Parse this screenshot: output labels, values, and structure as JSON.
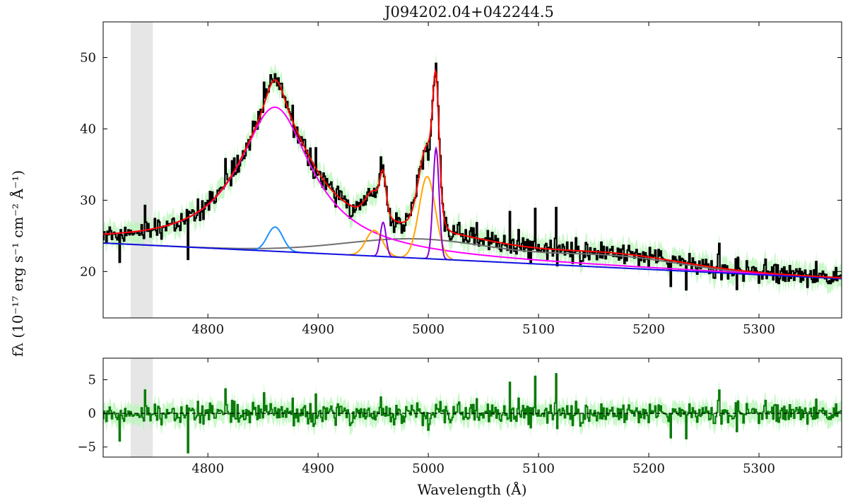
{
  "chart_data": [
    {
      "type": "line",
      "title": "J094202.04+042244.5",
      "xlabel": "",
      "ylabel": "fλ (10⁻¹⁷ erg s⁻¹ cm⁻² Å⁻¹)",
      "xlim": [
        4705,
        5375
      ],
      "ylim": [
        13.5,
        55
      ],
      "xticks": [
        4800,
        4900,
        5000,
        5100,
        5200,
        5300
      ],
      "yticks": [
        20,
        30,
        40,
        50
      ],
      "masked_region": [
        4730,
        4750
      ],
      "model": {
        "continuum": {
          "color": "#1010e0",
          "values_at": {
            "x": [
              4705,
              5375
            ],
            "y": [
              24.0,
              19.0
            ]
          }
        },
        "hbeta_broad": {
          "color": "#ff00ff",
          "center": 4861,
          "peak_above_continuum": 20.2
        },
        "hbeta_narrow": {
          "color": "#1e90ff",
          "center": 4861,
          "peak_above_continuum": 3.4
        },
        "oiii_core": {
          "color": "#8a00d4",
          "lines": [
            {
              "center": 4959,
              "peak_above_continuum": 4.8
            },
            {
              "center": 5007,
              "peak_above_continuum": 15.5
            }
          ]
        },
        "oiii_wing": {
          "color": "#ffa500",
          "lines": [
            {
              "center": 4951,
              "peak_above_continuum": 3.6
            },
            {
              "center": 4999,
              "peak_above_continuum": 11.5
            }
          ]
        },
        "feii": {
          "color": "#707070",
          "peak_above_continuum": 2.7
        },
        "total_fit": {
          "color": "#ff0000"
        }
      },
      "data_series": {
        "name": "",
        "color": "#000000",
        "error_color": "#b8f5b8"
      }
    },
    {
      "type": "line",
      "title": "",
      "xlabel": "Wavelength (Å)",
      "ylabel": "",
      "xlim": [
        4705,
        5375
      ],
      "ylim": [
        -6.5,
        8.2
      ],
      "xticks": [
        4800,
        4900,
        5000,
        5100,
        5200,
        5300
      ],
      "yticks": [
        -5,
        0,
        5
      ],
      "masked_region": [
        4730,
        4750
      ],
      "residual_series": {
        "name": "",
        "color": "#0b7a0b",
        "error_color": "#b8f5b8",
        "zero_line": 0
      }
    }
  ],
  "labels": {
    "title": "J094202.04+042244.5",
    "ylabel": "fλ (10⁻¹⁷ erg s⁻¹ cm⁻² Å⁻¹)",
    "xlabel": "Wavelength (Å)"
  }
}
